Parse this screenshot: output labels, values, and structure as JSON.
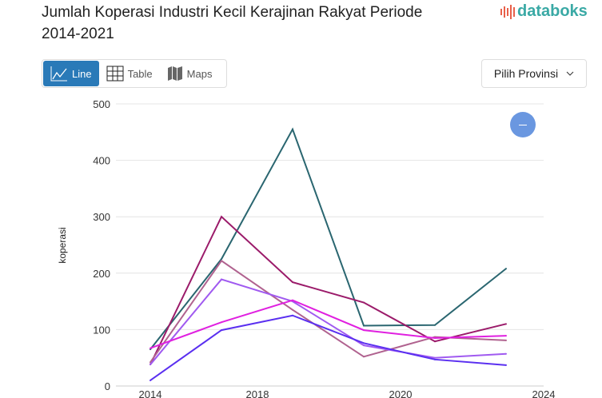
{
  "header": {
    "title": "Jumlah Koperasi Industri Kecil Kerajinan Rakyat Periode 2014-2021",
    "logo_text": "databoks"
  },
  "tabs": [
    {
      "label": "Line",
      "icon": "line-chart-icon",
      "active": true
    },
    {
      "label": "Table",
      "icon": "table-grid-icon"
    },
    {
      "label": "Maps",
      "icon": "map-icon"
    }
  ],
  "province_select": {
    "label": "Pilih Provinsi",
    "icon": "chevron-down-icon"
  },
  "chart_data": {
    "type": "line",
    "title": "",
    "ylabel": "koperasi",
    "xlabel": "",
    "x_tick_labels": [
      "2014",
      "2018",
      "2020",
      "2024"
    ],
    "ylim": [
      0,
      500
    ],
    "y_ticks": [
      0,
      100,
      200,
      300,
      400,
      500
    ],
    "grid": true,
    "series": [
      {
        "color": "#2a6670",
        "values": [
          65,
          225,
          455,
          107,
          108,
          208
        ]
      },
      {
        "color": "#9b1b6a",
        "values": [
          38,
          300,
          184,
          148,
          79,
          110
        ]
      },
      {
        "color": "#b0628f",
        "values": [
          42,
          222,
          135,
          52,
          87,
          81
        ]
      },
      {
        "color": "#a05af0",
        "values": [
          38,
          189,
          150,
          72,
          50,
          57
        ]
      },
      {
        "color": "#e020e0",
        "values": [
          67,
          113,
          152,
          99,
          85,
          89
        ]
      },
      {
        "color": "#5a2ff0",
        "values": [
          10,
          99,
          125,
          76,
          47,
          37
        ]
      }
    ]
  }
}
